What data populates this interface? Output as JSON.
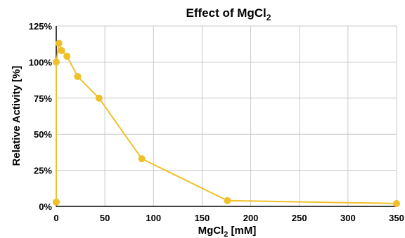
{
  "chart_data": {
    "type": "line",
    "title": "Effect of MgCl",
    "title_sub": "2",
    "xlabel": "MgCl",
    "xlabel_sub": "2",
    "xlabel_suffix": " [mM]",
    "ylabel": "Relative Activity [%]",
    "xlim": [
      0,
      350
    ],
    "ylim": [
      0,
      125
    ],
    "xticks": [
      0,
      50,
      100,
      150,
      200,
      250,
      300,
      350
    ],
    "xtick_labels": [
      "0",
      "50",
      "100",
      "150",
      "200",
      "250",
      "300",
      "350"
    ],
    "yticks": [
      0,
      25,
      50,
      75,
      100,
      125
    ],
    "ytick_labels": [
      "0%",
      "25%",
      "50%",
      "75%",
      "100%",
      "125%"
    ],
    "grid": true,
    "color": "#f0c028",
    "series": [
      {
        "x": [
          0,
          0,
          2.75,
          5.5,
          11,
          22,
          44,
          88,
          176,
          352
        ],
        "y": [
          3,
          100,
          113,
          108,
          104,
          90,
          75,
          33,
          4,
          2
        ]
      }
    ]
  }
}
